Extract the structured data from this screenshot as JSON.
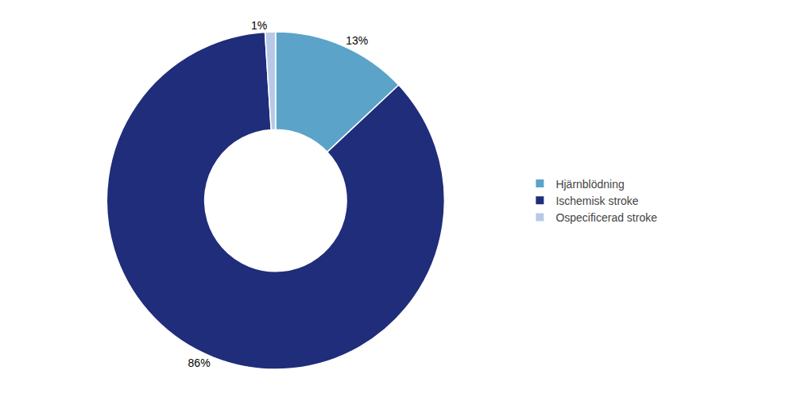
{
  "chart_data": {
    "type": "pie",
    "categories": [
      "Hjärnblödning",
      "Ischemisk stroke",
      "Ospecificerad stroke"
    ],
    "values": [
      13,
      86,
      1
    ],
    "value_labels": [
      "13%",
      "86%",
      "1%"
    ],
    "colors": [
      "#5BA3C9",
      "#1F2D7B",
      "#B8C9E8"
    ],
    "data_labels": true,
    "legend": "right"
  }
}
